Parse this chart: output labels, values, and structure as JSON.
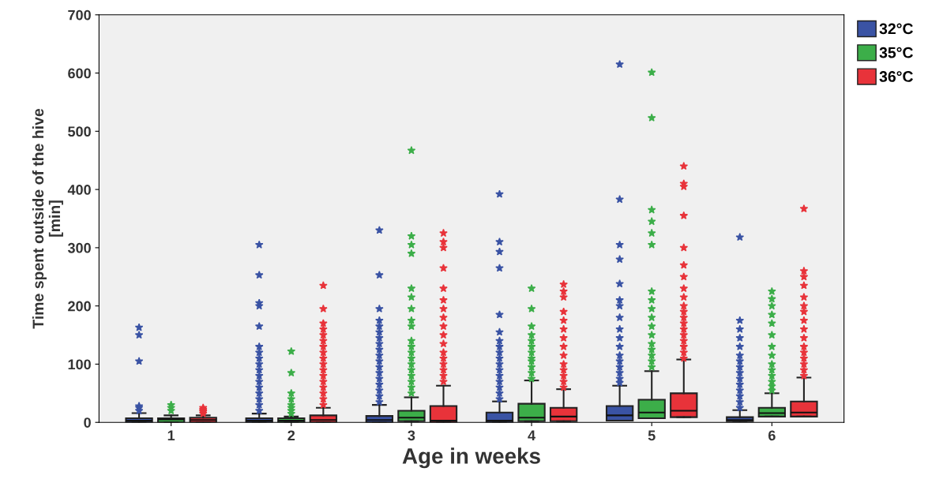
{
  "chart_data": {
    "type": "box",
    "xlabel": "Age in weeks",
    "ylabel": "Time spent outside of the hive\n[min]",
    "categories": [
      "1",
      "2",
      "3",
      "4",
      "5",
      "6"
    ],
    "ylim": [
      0,
      700
    ],
    "yticks": [
      0,
      100,
      200,
      300,
      400,
      500,
      600,
      700
    ],
    "grid": false,
    "legend": "top right",
    "marker": "star",
    "series": [
      {
        "name": "32°C",
        "color": "#3a53a4",
        "boxes": [
          {
            "low": 0,
            "q1": 0,
            "median": 3,
            "q3": 7,
            "high": 16,
            "outliers": [
              20,
              25,
              28,
              105,
              150,
              163
            ]
          },
          {
            "low": 0,
            "q1": 0,
            "median": 3,
            "q3": 7,
            "high": 15,
            "outliers": [
              20,
              30,
              40,
              50,
              60,
              70,
              80,
              90,
              100,
              110,
              120,
              130,
              165,
              200,
              205,
              253,
              305
            ]
          },
          {
            "low": 0,
            "q1": 0,
            "median": 4,
            "q3": 11,
            "high": 30,
            "outliers": [
              35,
              45,
              55,
              65,
              75,
              85,
              95,
              105,
              115,
              125,
              135,
              145,
              155,
              165,
              175,
              195,
              253,
              330
            ]
          },
          {
            "low": 0,
            "q1": 0,
            "median": 3,
            "q3": 17,
            "high": 36,
            "outliers": [
              40,
              50,
              60,
              70,
              80,
              90,
              100,
              110,
              120,
              130,
              140,
              155,
              185,
              265,
              293,
              310,
              392
            ]
          },
          {
            "low": 3,
            "q1": 3,
            "median": 12,
            "q3": 28,
            "high": 63,
            "outliers": [
              68,
              75,
              85,
              95,
              105,
              115,
              130,
              145,
              160,
              180,
              200,
              210,
              238,
              280,
              305,
              383,
              615
            ]
          },
          {
            "low": 2,
            "q1": 2,
            "median": 4,
            "q3": 9,
            "high": 21,
            "outliers": [
              25,
              35,
              45,
              55,
              65,
              75,
              85,
              95,
              105,
              115,
              130,
              145,
              160,
              175,
              318
            ]
          }
        ]
      },
      {
        "name": "35°C",
        "color": "#3cae49",
        "boxes": [
          {
            "low": 0,
            "q1": 0,
            "median": 5,
            "q3": 7,
            "high": 12,
            "outliers": [
              20,
              25,
              30
            ]
          },
          {
            "low": 0,
            "q1": 0,
            "median": 3,
            "q3": 7,
            "high": 10,
            "outliers": [
              15,
              20,
              25,
              30,
              40,
              50,
              85,
              122
            ]
          },
          {
            "low": 2,
            "q1": 2,
            "median": 8,
            "q3": 20,
            "high": 43,
            "outliers": [
              50,
              60,
              70,
              80,
              90,
              100,
              110,
              120,
              130,
              140,
              165,
              175,
              195,
              215,
              230,
              290,
              305,
              320,
              467
            ]
          },
          {
            "low": 2,
            "q1": 2,
            "median": 8,
            "q3": 32,
            "high": 72,
            "outliers": [
              75,
              85,
              95,
              105,
              110,
              120,
              130,
              140,
              150,
              165,
              195,
              230
            ]
          },
          {
            "low": 7,
            "q1": 7,
            "median": 17,
            "q3": 39,
            "high": 88,
            "outliers": [
              95,
              105,
              115,
              125,
              135,
              150,
              165,
              180,
              195,
              210,
              225,
              305,
              325,
              345,
              365,
              523,
              601
            ]
          },
          {
            "low": 10,
            "q1": 10,
            "median": 16,
            "q3": 25,
            "high": 50,
            "outliers": [
              55,
              62,
              70,
              80,
              90,
              100,
              115,
              130,
              150,
              170,
              185,
              200,
              212,
              225
            ]
          }
        ]
      },
      {
        "name": "36°C",
        "color": "#e8333a",
        "boxes": [
          {
            "low": 0,
            "q1": 0,
            "median": 4,
            "q3": 8,
            "high": 12,
            "outliers": [
              15,
              18,
              20,
              22,
              25
            ]
          },
          {
            "low": 0,
            "q1": 0,
            "median": 4,
            "q3": 12,
            "high": 25,
            "outliers": [
              30,
              40,
              50,
              60,
              70,
              80,
              90,
              100,
              110,
              120,
              130,
              140,
              150,
              160,
              170,
              195,
              235
            ]
          },
          {
            "low": 0,
            "q1": 0,
            "median": 3,
            "q3": 28,
            "high": 63,
            "outliers": [
              70,
              80,
              90,
              100,
              110,
              120,
              135,
              150,
              165,
              180,
              195,
              210,
              230,
              265,
              300,
              310,
              325
            ]
          },
          {
            "low": 2,
            "q1": 2,
            "median": 10,
            "q3": 25,
            "high": 57,
            "outliers": [
              60,
              70,
              80,
              90,
              100,
              115,
              130,
              145,
              160,
              175,
              190,
              215,
              225,
              237
            ]
          },
          {
            "low": 9,
            "q1": 9,
            "median": 20,
            "q3": 50,
            "high": 108,
            "outliers": [
              110,
              120,
              130,
              140,
              150,
              160,
              170,
              180,
              190,
              200,
              215,
              230,
              250,
              270,
              300,
              355,
              405,
              410,
              440
            ]
          },
          {
            "low": 10,
            "q1": 10,
            "median": 17,
            "q3": 36,
            "high": 77,
            "outliers": [
              80,
              90,
              100,
              110,
              120,
              130,
              145,
              160,
              175,
              190,
              200,
              215,
              235,
              250,
              260,
              367
            ]
          }
        ]
      }
    ]
  }
}
